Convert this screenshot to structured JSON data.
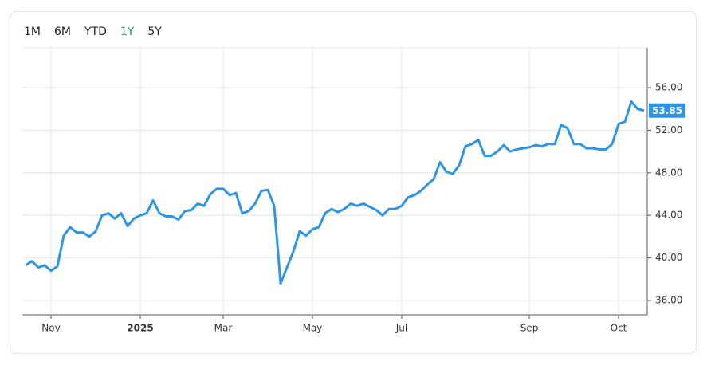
{
  "toolbar": {
    "ranges": [
      {
        "label": "1M"
      },
      {
        "label": "6M"
      },
      {
        "label": "YTD"
      },
      {
        "label": "1Y",
        "selected": true
      },
      {
        "label": "5Y"
      }
    ]
  },
  "chart_data": {
    "type": "line",
    "color": "#2e95e5",
    "categories": [
      null,
      null,
      null,
      null,
      "Nov",
      null,
      null,
      null,
      null,
      null,
      null,
      null,
      null,
      null,
      null,
      null,
      null,
      null,
      "2025",
      null,
      null,
      null,
      null,
      null,
      null,
      null,
      null,
      null,
      null,
      null,
      null,
      "Mar",
      null,
      null,
      null,
      null,
      null,
      null,
      null,
      null,
      null,
      null,
      null,
      null,
      null,
      "May",
      null,
      null,
      null,
      null,
      null,
      null,
      null,
      null,
      null,
      null,
      null,
      null,
      null,
      "Jul",
      null,
      null,
      null,
      null,
      null,
      null,
      null,
      null,
      null,
      null,
      null,
      null,
      null,
      null,
      null,
      null,
      null,
      null,
      null,
      "Sep",
      null,
      null,
      null,
      null,
      null,
      null,
      null,
      null,
      null,
      null,
      null,
      null,
      null,
      "Oct",
      null,
      null,
      null,
      null
    ],
    "values": [
      39.3,
      39.7,
      39.1,
      39.3,
      38.8,
      39.2,
      42.1,
      42.9,
      42.4,
      42.4,
      42.0,
      42.5,
      44.0,
      44.2,
      43.7,
      44.2,
      43.0,
      43.7,
      44.0,
      44.2,
      45.4,
      44.2,
      43.9,
      43.9,
      43.6,
      44.4,
      44.5,
      45.1,
      44.9,
      46.0,
      46.5,
      46.5,
      45.9,
      46.1,
      44.2,
      44.4,
      45.1,
      46.3,
      46.4,
      44.9,
      37.6,
      39.1,
      40.6,
      42.5,
      42.1,
      42.7,
      42.9,
      44.2,
      44.6,
      44.3,
      44.6,
      45.1,
      44.9,
      45.1,
      44.8,
      44.5,
      44.0,
      44.6,
      44.6,
      44.9,
      45.7,
      45.9,
      46.3,
      46.9,
      47.4,
      49.0,
      48.1,
      47.9,
      48.7,
      50.5,
      50.7,
      51.1,
      49.6,
      49.6,
      50.0,
      50.6,
      50.0,
      50.2,
      50.3,
      50.4,
      50.6,
      50.5,
      50.7,
      50.7,
      52.5,
      52.2,
      50.7,
      50.7,
      50.3,
      50.3,
      50.2,
      50.2,
      50.7,
      52.6,
      52.8,
      54.7,
      54.0,
      53.85
    ],
    "ylim": [
      34.65,
      59.75
    ],
    "yticks": [
      {
        "value": 36,
        "label": "36.00"
      },
      {
        "value": 40,
        "label": "40.00"
      },
      {
        "value": 44,
        "label": "44.00"
      },
      {
        "value": 48,
        "label": "48.00"
      },
      {
        "value": 52,
        "label": "52.00"
      },
      {
        "value": 56,
        "label": "56.00"
      }
    ],
    "grid": true
  }
}
